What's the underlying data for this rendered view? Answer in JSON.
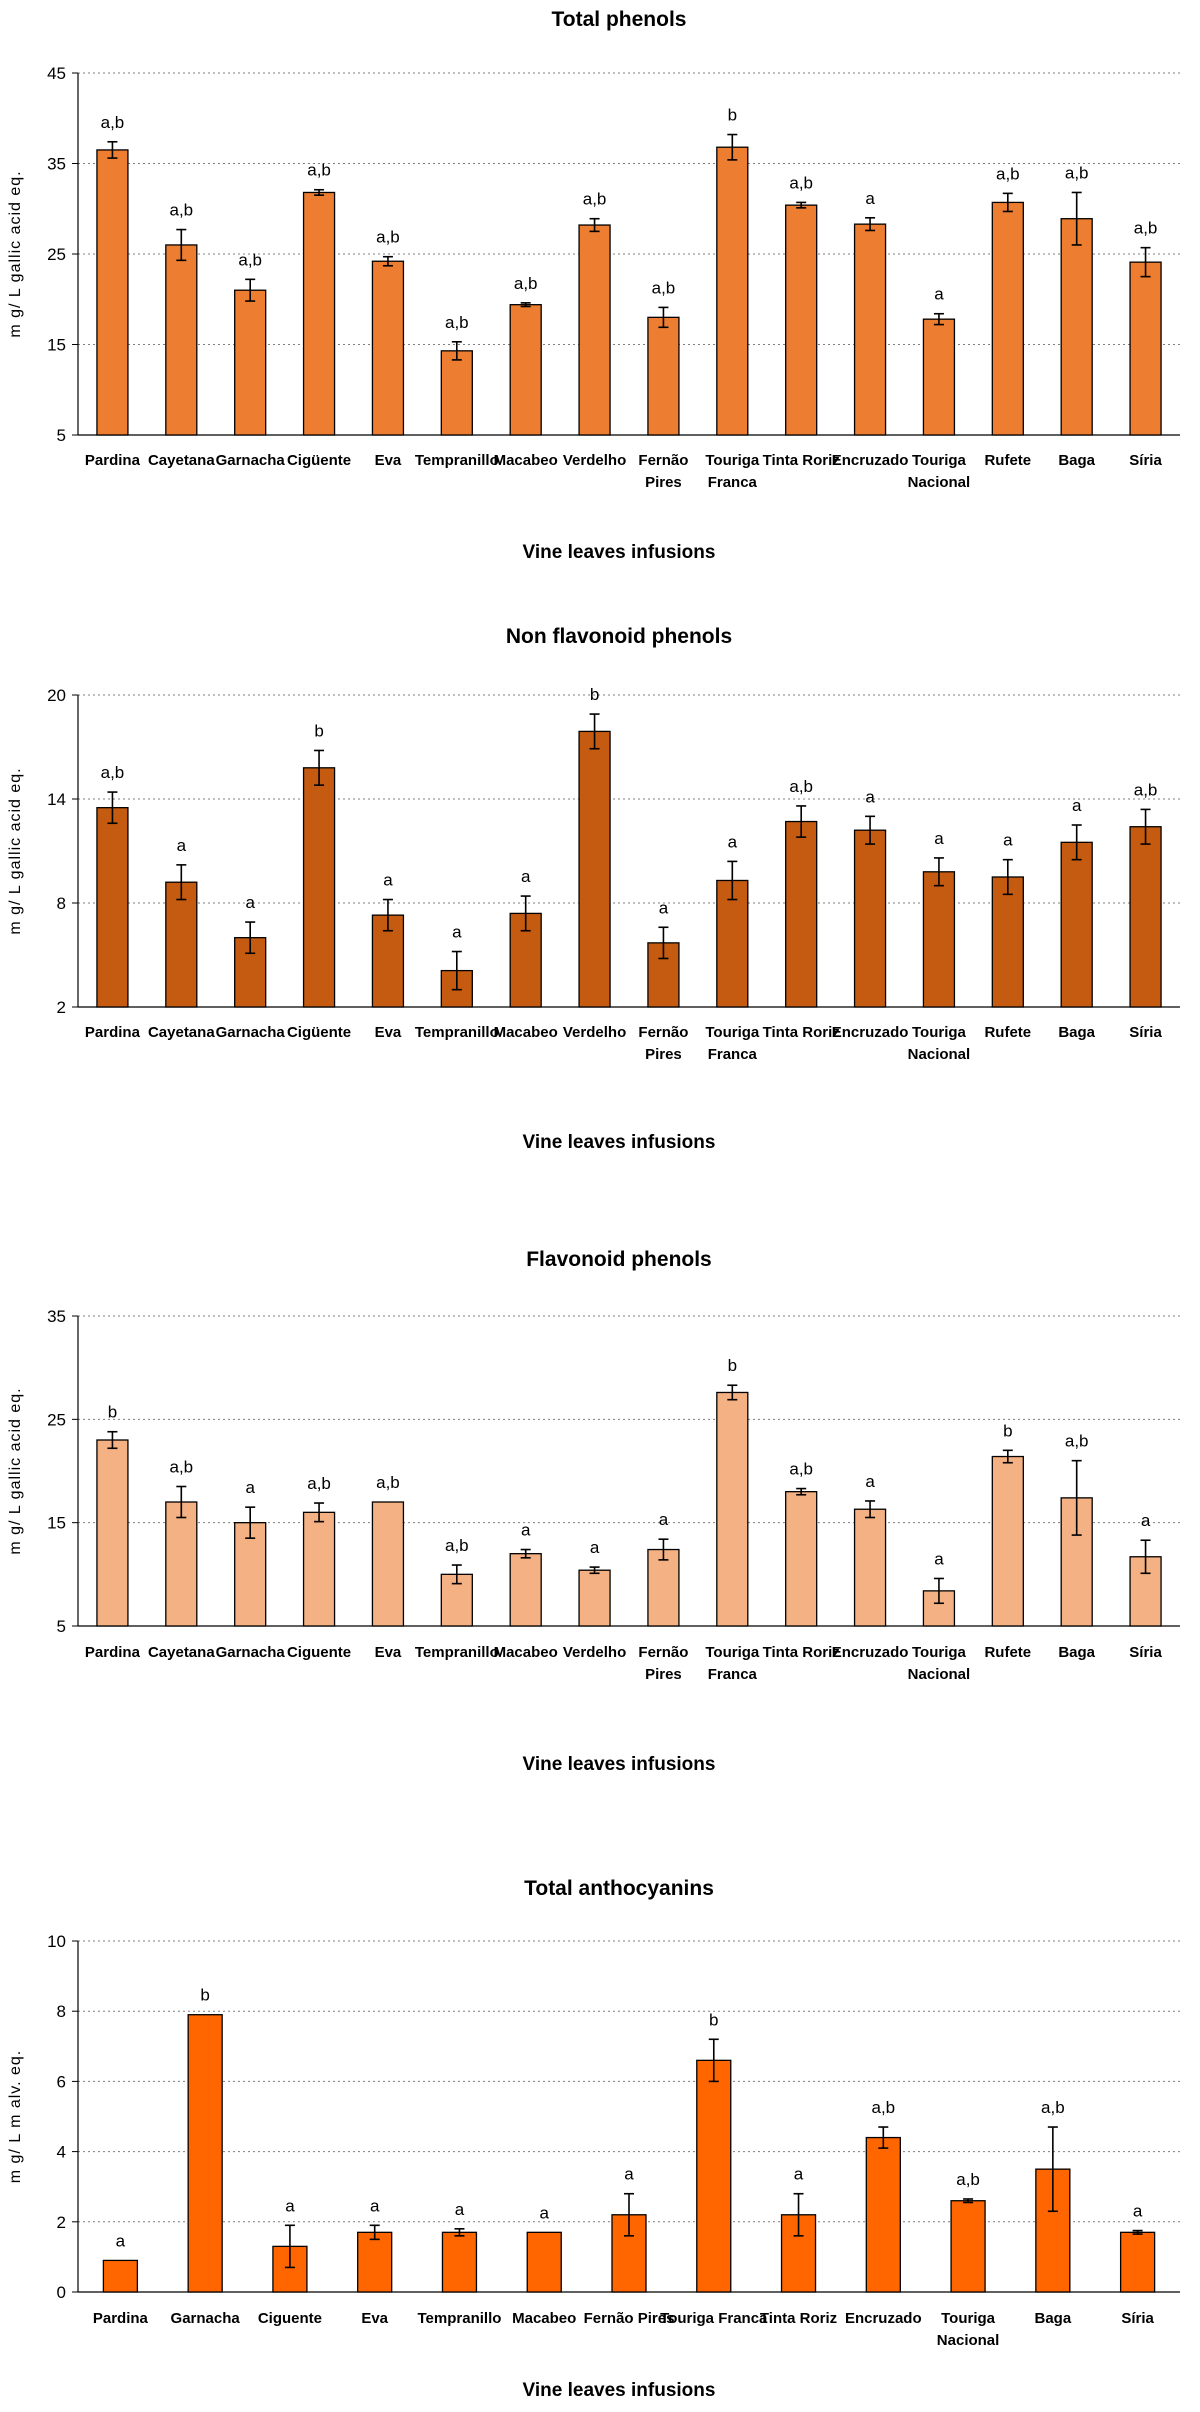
{
  "chart_data": [
    {
      "type": "bar",
      "title": "Total phenols",
      "xlabel": "Vine leaves infusions",
      "ylabel": "m g/ L gallic acid eq.",
      "ylim": [
        5,
        45
      ],
      "yticks": [
        5,
        15,
        25,
        35,
        45
      ],
      "grid": true,
      "bar_color": "#ED7D31",
      "categories": [
        "Pardina",
        "Cayetana",
        "Garnacha",
        "Cigüente",
        "Eva",
        "Tempranillo",
        "Macabeo",
        "Verdelho",
        "Fernão Pires",
        "Touriga Franca",
        "Tinta Roriz",
        "Encruzado",
        "Touriga Nacional",
        "Rufete",
        "Baga",
        "Síria"
      ],
      "category_lines": [
        [
          "Pardina"
        ],
        [
          "Cayetana"
        ],
        [
          "Garnacha"
        ],
        [
          "Cigüente"
        ],
        [
          "Eva"
        ],
        [
          "Tempranillo"
        ],
        [
          "Macabeo"
        ],
        [
          "Verdelho"
        ],
        [
          "Fernão",
          "Pires"
        ],
        [
          "Touriga",
          "Franca"
        ],
        [
          "Tinta Roriz"
        ],
        [
          "Encruzado"
        ],
        [
          "Touriga",
          "Nacional"
        ],
        [
          "Rufete"
        ],
        [
          "Baga"
        ],
        [
          "Síria"
        ]
      ],
      "values": [
        36.5,
        26.0,
        21.0,
        31.8,
        24.2,
        14.3,
        19.4,
        28.2,
        18.0,
        36.8,
        30.4,
        28.3,
        17.8,
        30.7,
        28.9,
        24.1
      ],
      "errors": [
        0.9,
        1.7,
        1.2,
        0.3,
        0.5,
        1.0,
        0.2,
        0.7,
        1.1,
        1.4,
        0.3,
        0.7,
        0.6,
        1.0,
        2.9,
        1.6
      ],
      "significance": [
        "a,b",
        "a,b",
        "a,b",
        "a,b",
        "a,b",
        "a,b",
        "a,b",
        "a,b",
        "a,b",
        "b",
        "a,b",
        "a",
        "a",
        "a,b",
        "a,b",
        "a,b"
      ]
    },
    {
      "type": "bar",
      "title": "Non flavonoid phenols",
      "xlabel": "Vine leaves infusions",
      "ylabel": "m g/ L gallic acid eq.",
      "ylim": [
        2,
        20
      ],
      "yticks": [
        2,
        8,
        14,
        20
      ],
      "grid": true,
      "bar_color": "#C55A11",
      "categories": [
        "Pardina",
        "Cayetana",
        "Garnacha",
        "Cigüente",
        "Eva",
        "Tempranillo",
        "Macabeo",
        "Verdelho",
        "Fernão Pires",
        "Touriga Franca",
        "Tinta Roriz",
        "Encruzado",
        "Touriga Nacional",
        "Rufete",
        "Baga",
        "Síria"
      ],
      "category_lines": [
        [
          "Pardina"
        ],
        [
          "Cayetana"
        ],
        [
          "Garnacha"
        ],
        [
          "Cigüente"
        ],
        [
          "Eva"
        ],
        [
          "Tempranillo"
        ],
        [
          "Macabeo"
        ],
        [
          "Verdelho"
        ],
        [
          "Fernão",
          "Pires"
        ],
        [
          "Touriga",
          "Franca"
        ],
        [
          "Tinta Roriz"
        ],
        [
          "Encruzado"
        ],
        [
          "Touriga",
          "Nacional"
        ],
        [
          "Rufete"
        ],
        [
          "Baga"
        ],
        [
          "Síria"
        ]
      ],
      "values": [
        13.5,
        9.2,
        6.0,
        15.8,
        7.3,
        4.1,
        7.4,
        17.9,
        5.7,
        9.3,
        12.7,
        12.2,
        9.8,
        9.5,
        11.5,
        12.4
      ],
      "errors": [
        0.9,
        1.0,
        0.9,
        1.0,
        0.9,
        1.1,
        1.0,
        1.0,
        0.9,
        1.1,
        0.9,
        0.8,
        0.8,
        1.0,
        1.0,
        1.0
      ],
      "significance": [
        "a,b",
        "a",
        "a",
        "b",
        "a",
        "a",
        "a",
        "b",
        "a",
        "a",
        "a,b",
        "a",
        "a",
        "a",
        "a",
        "a,b"
      ]
    },
    {
      "type": "bar",
      "title": "Flavonoid phenols",
      "xlabel": "Vine leaves infusions",
      "ylabel": "m g/ L gallic acid eq.",
      "ylim": [
        5,
        35
      ],
      "yticks": [
        5,
        15,
        25,
        35
      ],
      "grid": true,
      "bar_color": "#F4B183",
      "categories": [
        "Pardina",
        "Cayetana",
        "Garnacha",
        "Ciguente",
        "Eva",
        "Tempranillo",
        "Macabeo",
        "Verdelho",
        "Fernão Pires",
        "Touriga Franca",
        "Tinta Roriz",
        "Encruzado",
        "Touriga Nacional",
        "Rufete",
        "Baga",
        "Síria"
      ],
      "category_lines": [
        [
          "Pardina"
        ],
        [
          "Cayetana"
        ],
        [
          "Garnacha"
        ],
        [
          "Ciguente"
        ],
        [
          "Eva"
        ],
        [
          "Tempranillo"
        ],
        [
          "Macabeo"
        ],
        [
          "Verdelho"
        ],
        [
          "Fernão",
          "Pires"
        ],
        [
          "Touriga",
          "Franca"
        ],
        [
          "Tinta Roriz"
        ],
        [
          "Encruzado"
        ],
        [
          "Touriga",
          "Nacional"
        ],
        [
          "Rufete"
        ],
        [
          "Baga"
        ],
        [
          "Síria"
        ]
      ],
      "values": [
        23.0,
        17.0,
        15.0,
        16.0,
        17.0,
        10.0,
        12.0,
        10.4,
        12.4,
        27.6,
        18.0,
        16.3,
        8.4,
        21.4,
        17.4,
        11.7
      ],
      "errors": [
        0.8,
        1.5,
        1.5,
        0.9,
        0.0,
        0.9,
        0.4,
        0.3,
        1.0,
        0.7,
        0.3,
        0.8,
        1.2,
        0.6,
        3.6,
        1.6
      ],
      "significance": [
        "b",
        "a,b",
        "a",
        "a,b",
        "a,b",
        "a,b",
        "a",
        "a",
        "a",
        "b",
        "a,b",
        "a",
        "a",
        "b",
        "a,b",
        "a"
      ]
    },
    {
      "type": "bar",
      "title": "Total anthocyanins",
      "xlabel": "Vine leaves infusions",
      "ylabel": "m g/ L m alv. eq.",
      "ylim": [
        0,
        10
      ],
      "yticks": [
        0,
        2,
        4,
        6,
        8,
        10
      ],
      "grid": true,
      "bar_color": "#FF6600",
      "categories": [
        "Pardina",
        "Garnacha",
        "Ciguente",
        "Eva",
        "Tempranillo",
        "Macabeo",
        "Fernão Pires",
        "Touriga Franca",
        "Tinta Roriz",
        "Encruzado",
        "Touriga Nacional",
        "Baga",
        "Síria"
      ],
      "category_lines": [
        [
          "Pardina"
        ],
        [
          "Garnacha"
        ],
        [
          "Ciguente"
        ],
        [
          "Eva"
        ],
        [
          "Tempranillo"
        ],
        [
          "Macabeo"
        ],
        [
          "Fernão Pires"
        ],
        [
          "Touriga Franca"
        ],
        [
          "Tinta Roriz"
        ],
        [
          "Encruzado"
        ],
        [
          "Touriga",
          "Nacional"
        ],
        [
          "Baga"
        ],
        [
          "Síria"
        ]
      ],
      "values": [
        0.9,
        7.9,
        1.3,
        1.7,
        1.7,
        1.7,
        2.2,
        6.6,
        2.2,
        4.4,
        2.6,
        3.5,
        1.7
      ],
      "errors": [
        0.0,
        0.0,
        0.6,
        0.2,
        0.1,
        0.0,
        0.6,
        0.6,
        0.6,
        0.3,
        0.05,
        1.2,
        0.05
      ],
      "significance": [
        "a",
        "b",
        "a",
        "a",
        "a",
        "a",
        "a",
        "b",
        "a",
        "a,b",
        "a,b",
        "a,b",
        "a"
      ]
    }
  ]
}
